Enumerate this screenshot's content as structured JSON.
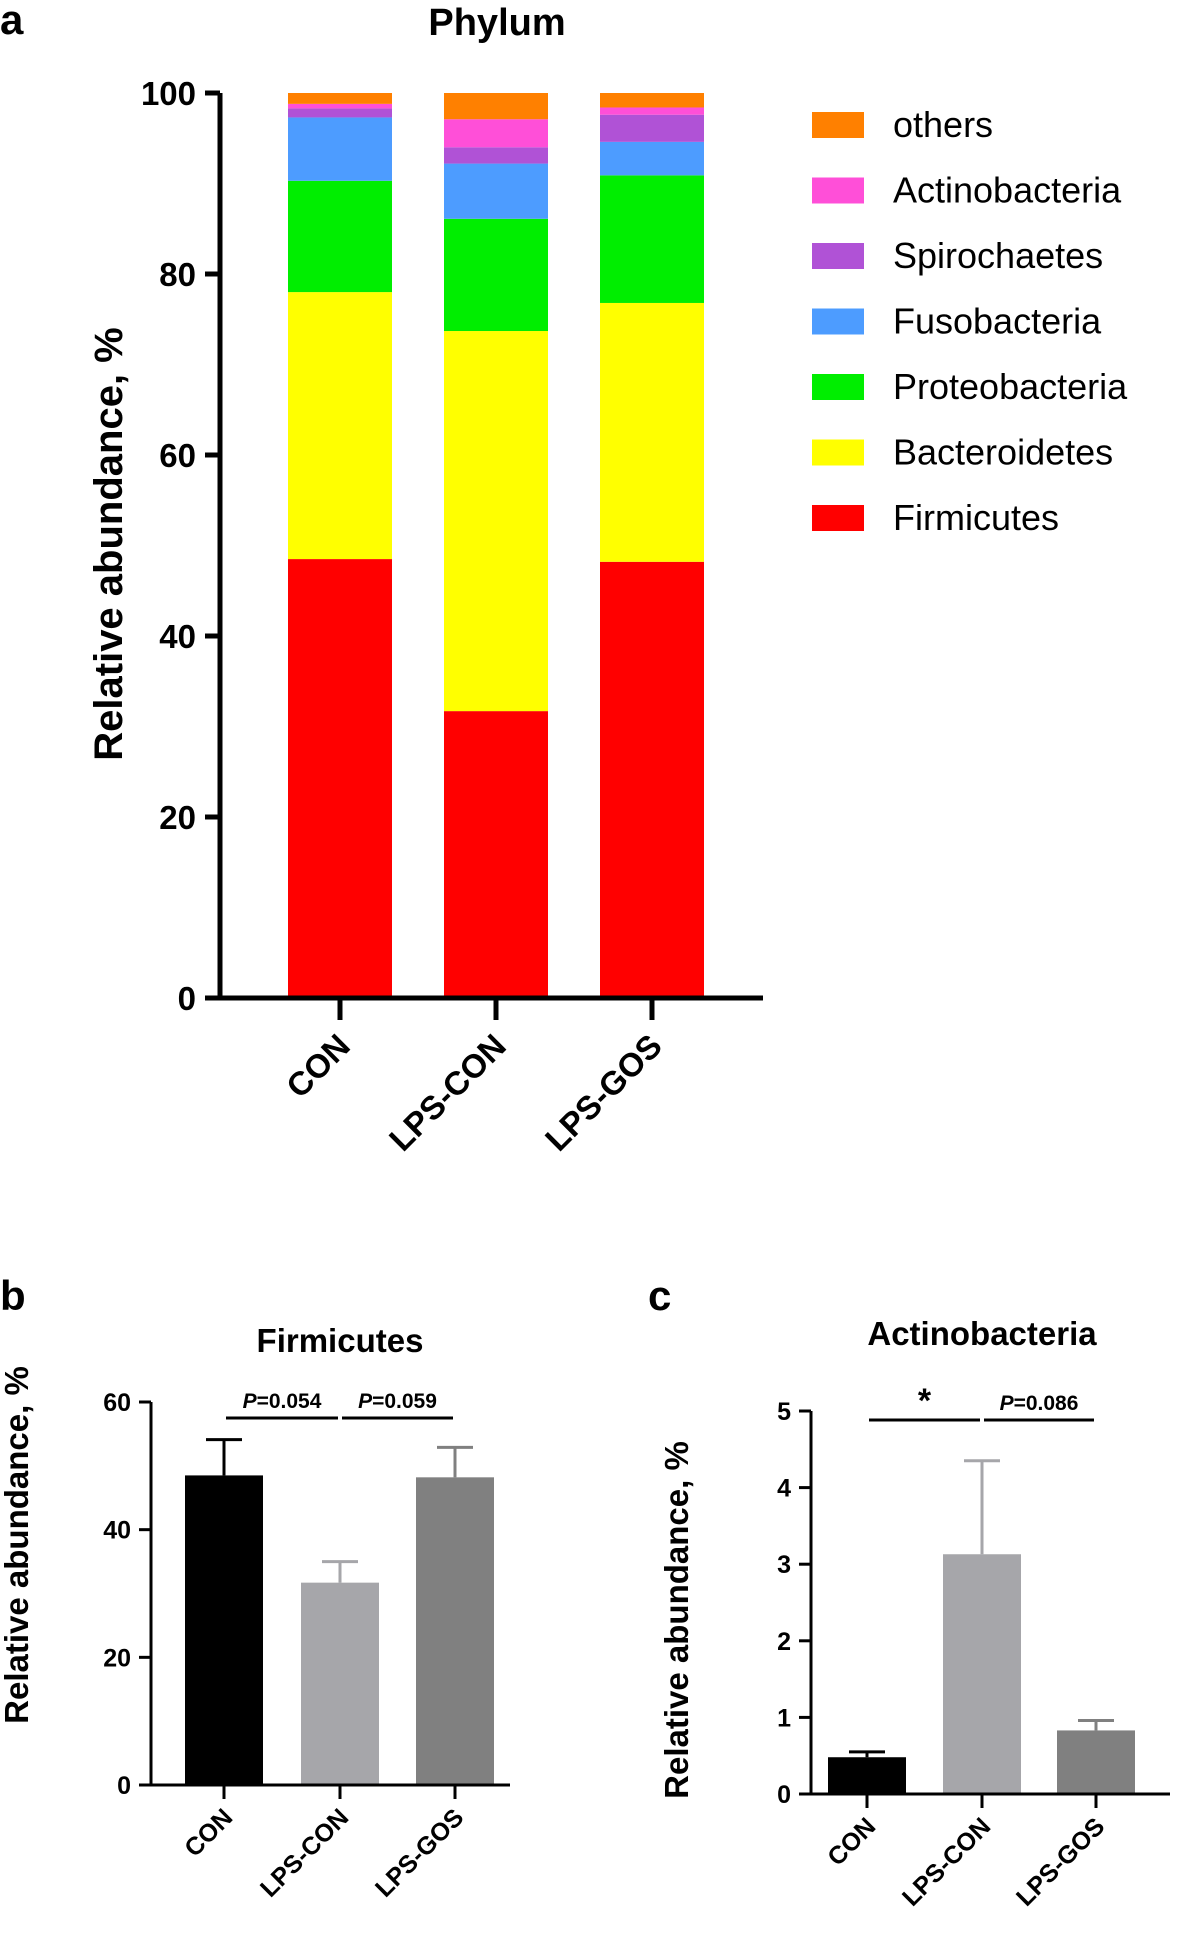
{
  "panel_letters": {
    "a": "a",
    "b": "b",
    "c": "c"
  },
  "colors": {
    "others": "#FF8000",
    "Actinobacteria": "#FF4FD8",
    "Spirochaetes": "#B052D6",
    "Fusobacteria": "#4D9CFF",
    "Proteobacteria": "#00EE00",
    "Bacteroidetes": "#FFFF00",
    "Firmicutes": "#FF0000",
    "bar_con": "#000000",
    "bar_lpscon": "#A6A6AA",
    "bar_lpsgos": "#808080"
  },
  "chart_data": [
    {
      "id": "a",
      "type": "bar",
      "stacked": true,
      "title": "Phylum",
      "xlabel": "",
      "ylabel": "Relative abundance, %",
      "ylim": [
        0,
        100
      ],
      "yticks": [
        0,
        20,
        40,
        60,
        80,
        100
      ],
      "categories": [
        "CON",
        "LPS-CON",
        "LPS-GOS"
      ],
      "series": [
        {
          "name": "Firmicutes",
          "values": [
            48.5,
            31.7,
            48.2
          ]
        },
        {
          "name": "Bacteroidetes",
          "values": [
            29.5,
            42.0,
            28.6
          ]
        },
        {
          "name": "Proteobacteria",
          "values": [
            12.3,
            12.4,
            14.1
          ]
        },
        {
          "name": "Fusobacteria",
          "values": [
            7.0,
            6.1,
            3.7
          ]
        },
        {
          "name": "Spirochaetes",
          "values": [
            1.0,
            1.8,
            3.0
          ]
        },
        {
          "name": "Actinobacteria",
          "values": [
            0.5,
            3.1,
            0.8
          ]
        },
        {
          "name": "others",
          "values": [
            1.2,
            2.9,
            1.6
          ]
        }
      ],
      "legend_order": [
        "others",
        "Actinobacteria",
        "Spirochaetes",
        "Fusobacteria",
        "Proteobacteria",
        "Bacteroidetes",
        "Firmicutes"
      ],
      "legend_position": "right"
    },
    {
      "id": "b",
      "type": "bar",
      "title": "Firmicutes",
      "xlabel": "",
      "ylabel": "Relative abundance, %",
      "ylim": [
        0,
        60
      ],
      "yticks": [
        0,
        20,
        40,
        60
      ],
      "categories": [
        "CON",
        "LPS-CON",
        "LPS-GOS"
      ],
      "values": [
        48.5,
        31.7,
        48.2
      ],
      "errors": [
        5.6,
        3.3,
        4.7
      ],
      "comparisons": [
        {
          "from": 0,
          "to": 1,
          "italic": "P",
          "label": "=0.054"
        },
        {
          "from": 1,
          "to": 2,
          "italic": "P",
          "label": "=0.059"
        }
      ]
    },
    {
      "id": "c",
      "type": "bar",
      "title": "Actinobacteria",
      "xlabel": "",
      "ylabel": "Relative abundance, %",
      "ylim": [
        0,
        5
      ],
      "yticks": [
        0,
        1,
        2,
        3,
        4,
        5
      ],
      "categories": [
        "CON",
        "LPS-CON",
        "LPS-GOS"
      ],
      "values": [
        0.48,
        3.13,
        0.83
      ],
      "errors": [
        0.07,
        1.22,
        0.13
      ],
      "comparisons": [
        {
          "from": 0,
          "to": 1,
          "italic": "",
          "label": "*"
        },
        {
          "from": 1,
          "to": 2,
          "italic": "P",
          "label": "=0.086"
        }
      ]
    }
  ]
}
